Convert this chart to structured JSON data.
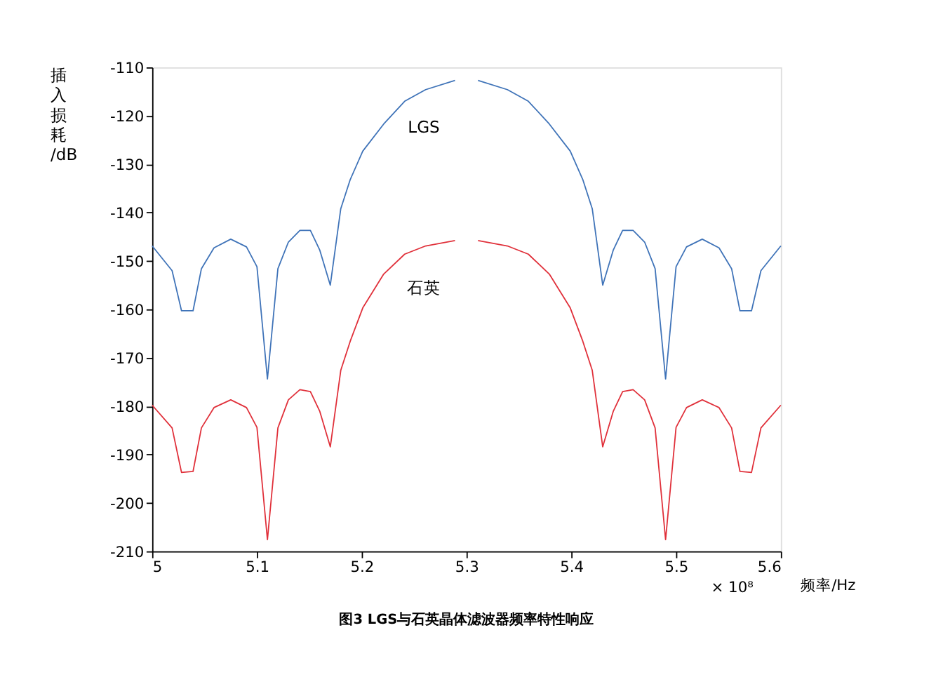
{
  "chart_data": {
    "type": "line",
    "title": "图3 LGS与石英晶体滤波器频率特性响应",
    "xlabel": "频率/Hz",
    "ylabel": "插入损耗/dB",
    "x": [
      5.0,
      5.019,
      5.028,
      5.039,
      5.047,
      5.059,
      5.075,
      5.09,
      5.1,
      5.11,
      5.12,
      5.13,
      5.141,
      5.151,
      5.16,
      5.17,
      5.18,
      5.189,
      5.201,
      5.221,
      5.241,
      5.261,
      5.289,
      5.3,
      5.311,
      5.339,
      5.359,
      5.379,
      5.399,
      5.411,
      5.42,
      5.43,
      5.44,
      5.449,
      5.459,
      5.47,
      5.48,
      5.49,
      5.5,
      5.51,
      5.525,
      5.541,
      5.553,
      5.561,
      5.572,
      5.581,
      5.6
    ],
    "series": [
      {
        "name": "LGS",
        "color": "#3f73b8",
        "values": [
          -146.9,
          -152,
          -160.3,
          -160.3,
          -151.6,
          -147.3,
          -145.5,
          -147.1,
          -151.2,
          -174.4,
          -151.6,
          -146.1,
          -143.7,
          -143.7,
          -147.8,
          -155,
          -139.2,
          -133.2,
          -127.3,
          -121.7,
          -117,
          -114.6,
          -112.7,
          null,
          -112.7,
          -114.6,
          -117,
          -121.7,
          -127.3,
          -133.2,
          -139.2,
          -155,
          -147.8,
          -143.7,
          -143.7,
          -146.1,
          -151.6,
          -174.4,
          -151.2,
          -147.1,
          -145.5,
          -147.3,
          -151.6,
          -160.3,
          -160.3,
          -152,
          -146.9
        ]
      },
      {
        "name": "石英",
        "color": "#e0303a",
        "values": [
          -179.8,
          -184.5,
          -193.7,
          -193.5,
          -184.5,
          -180.3,
          -178.7,
          -180.3,
          -184.4,
          -207.6,
          -184.5,
          -178.7,
          -176.6,
          -177,
          -181.1,
          -188.4,
          -172.6,
          -166.6,
          -159.7,
          -152.7,
          -148.6,
          -146.9,
          -145.8,
          null,
          -145.8,
          -146.9,
          -148.6,
          -152.7,
          -159.7,
          -166.6,
          -172.6,
          -188.4,
          -181.1,
          -177,
          -176.6,
          -178.7,
          -184.5,
          -207.6,
          -184.4,
          -180.3,
          -178.7,
          -180.3,
          -184.5,
          -193.5,
          -193.7,
          -184.5,
          -179.8
        ]
      }
    ],
    "annotations": [
      "× 10⁸"
    ],
    "xlim": [
      5,
      5.6
    ],
    "xticks": [
      5,
      5.1,
      5.2,
      5.3,
      5.4,
      5.5,
      5.6
    ],
    "ylim": [
      -210,
      -110
    ],
    "yticks": [
      -210,
      -200,
      -190,
      -180,
      -170,
      -160,
      -150,
      -140,
      -130,
      -120,
      -110
    ],
    "grid": false,
    "legend": false,
    "marker": "none",
    "line_style": "solid"
  }
}
